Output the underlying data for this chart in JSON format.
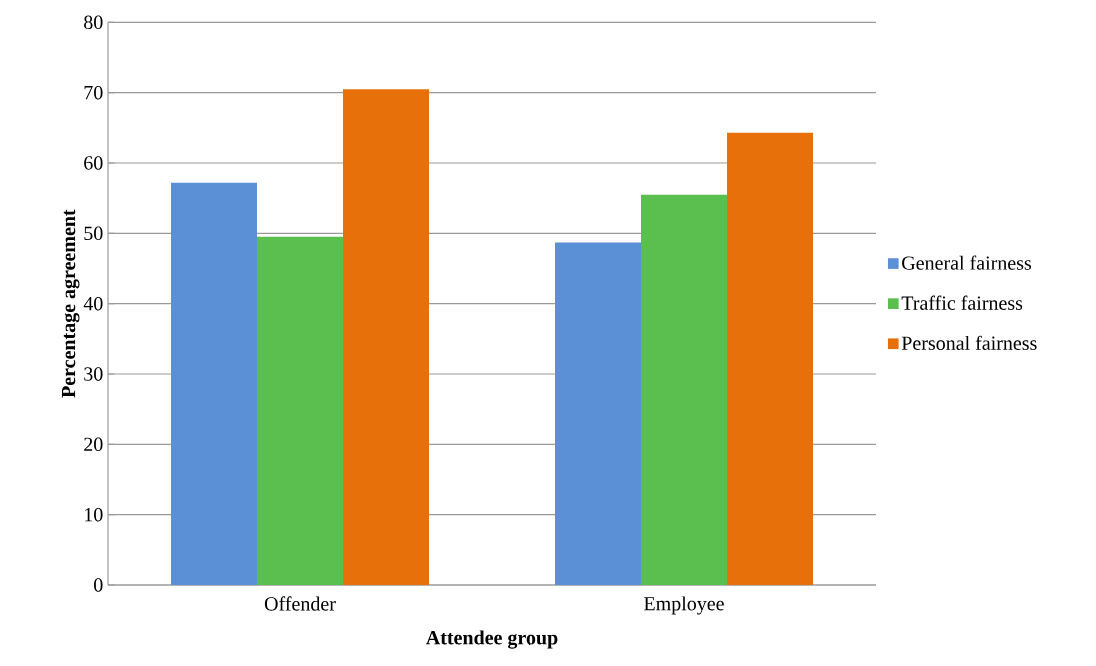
{
  "chart_data": {
    "type": "bar",
    "xlabel": "Attendee group",
    "ylabel": "Percentage agreement",
    "categories": [
      "Offender",
      "Employee"
    ],
    "series": [
      {
        "name": "General fairness",
        "color": "#5b8fd6",
        "values": [
          57.2,
          48.7
        ]
      },
      {
        "name": "Traffic fairness",
        "color": "#5bbf4f",
        "values": [
          49.5,
          55.5
        ]
      },
      {
        "name": "Personal fairness",
        "color": "#e8700a",
        "values": [
          70.5,
          64.3
        ]
      }
    ],
    "ylim": [
      0,
      80
    ],
    "yticks": [
      0,
      10,
      20,
      30,
      40,
      50,
      60,
      70,
      80
    ],
    "grid": "y",
    "legend": "right"
  }
}
